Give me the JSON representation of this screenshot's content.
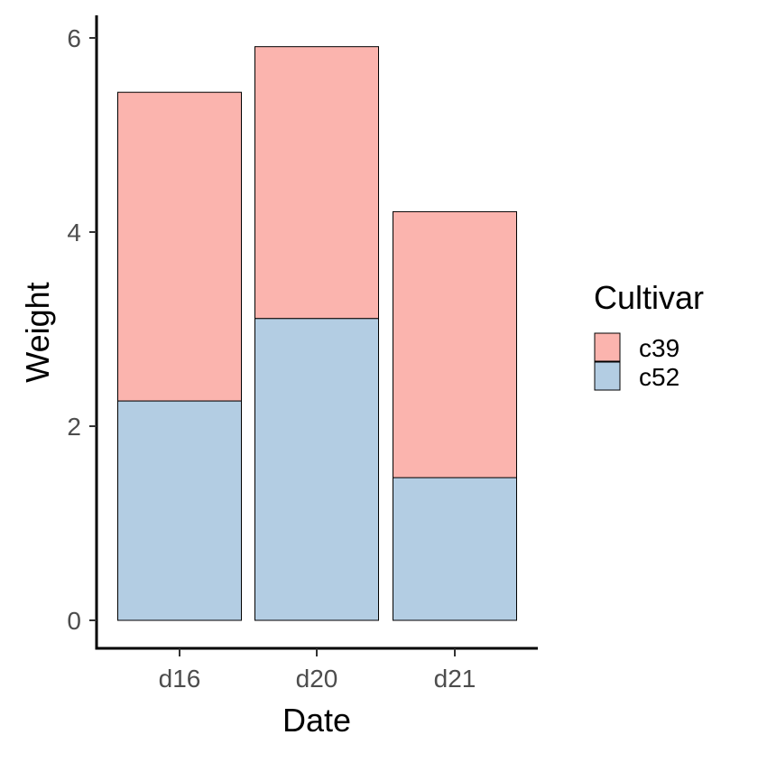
{
  "chart_data": {
    "type": "bar",
    "stacked": true,
    "xlabel": "Date",
    "ylabel": "Weight",
    "categories": [
      "d16",
      "d20",
      "d21"
    ],
    "series": [
      {
        "name": "c52",
        "values": [
          2.26,
          3.11,
          1.47
        ],
        "color": "#b3cde3"
      },
      {
        "name": "c39",
        "values": [
          3.18,
          2.8,
          2.74
        ],
        "color": "#fbb4ae"
      }
    ],
    "ylim": [
      0,
      6
    ],
    "yticks": [
      0,
      2,
      4,
      6
    ],
    "grid": false,
    "legend": {
      "title": "Cultivar",
      "placement": "right",
      "entries": [
        {
          "name": "c39",
          "color": "#fbb4ae"
        },
        {
          "name": "c52",
          "color": "#b3cde3"
        }
      ]
    }
  }
}
